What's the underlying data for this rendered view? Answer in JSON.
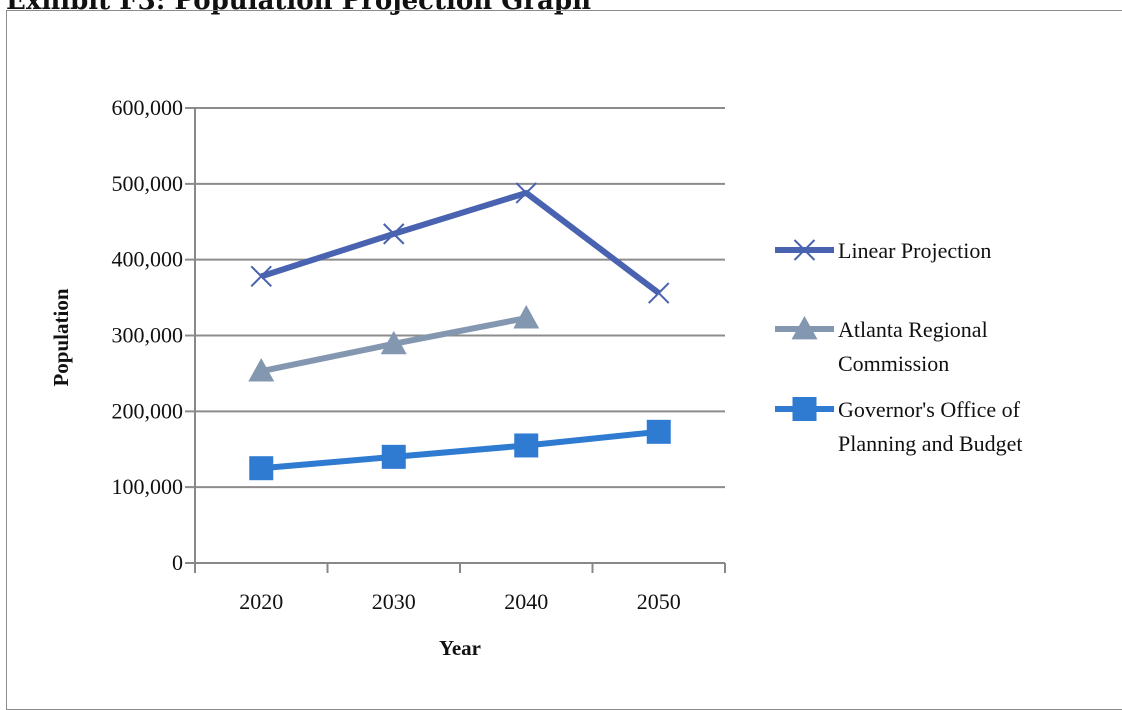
{
  "page": {
    "title": "Exhibit F3: Population Projection Graph"
  },
  "chart_data": {
    "type": "line",
    "title": "",
    "xlabel": "Year",
    "ylabel": "Population",
    "categories": [
      "2020",
      "2030",
      "2040",
      "2050"
    ],
    "ylim": [
      0,
      600000
    ],
    "yticks": [
      0,
      100000,
      200000,
      300000,
      400000,
      500000,
      600000
    ],
    "ytick_labels": [
      "0",
      "100,000",
      "200,000",
      "300,000",
      "400,000",
      "500,000",
      "600,000"
    ],
    "grid": true,
    "legend": "right",
    "series": [
      {
        "name": "Linear Projection",
        "values": [
          378000,
          434000,
          488000,
          356000
        ],
        "color": "#4a63b0",
        "marker": "x"
      },
      {
        "name": "Atlanta Regional Commission",
        "values": [
          253000,
          289000,
          323000,
          null
        ],
        "color": "#8497b0",
        "marker": "triangle"
      },
      {
        "name": "Governor's Office of Planning and Budget",
        "values": [
          125000,
          140000,
          155000,
          173000
        ],
        "color": "#2e7bd1",
        "marker": "square"
      }
    ]
  }
}
